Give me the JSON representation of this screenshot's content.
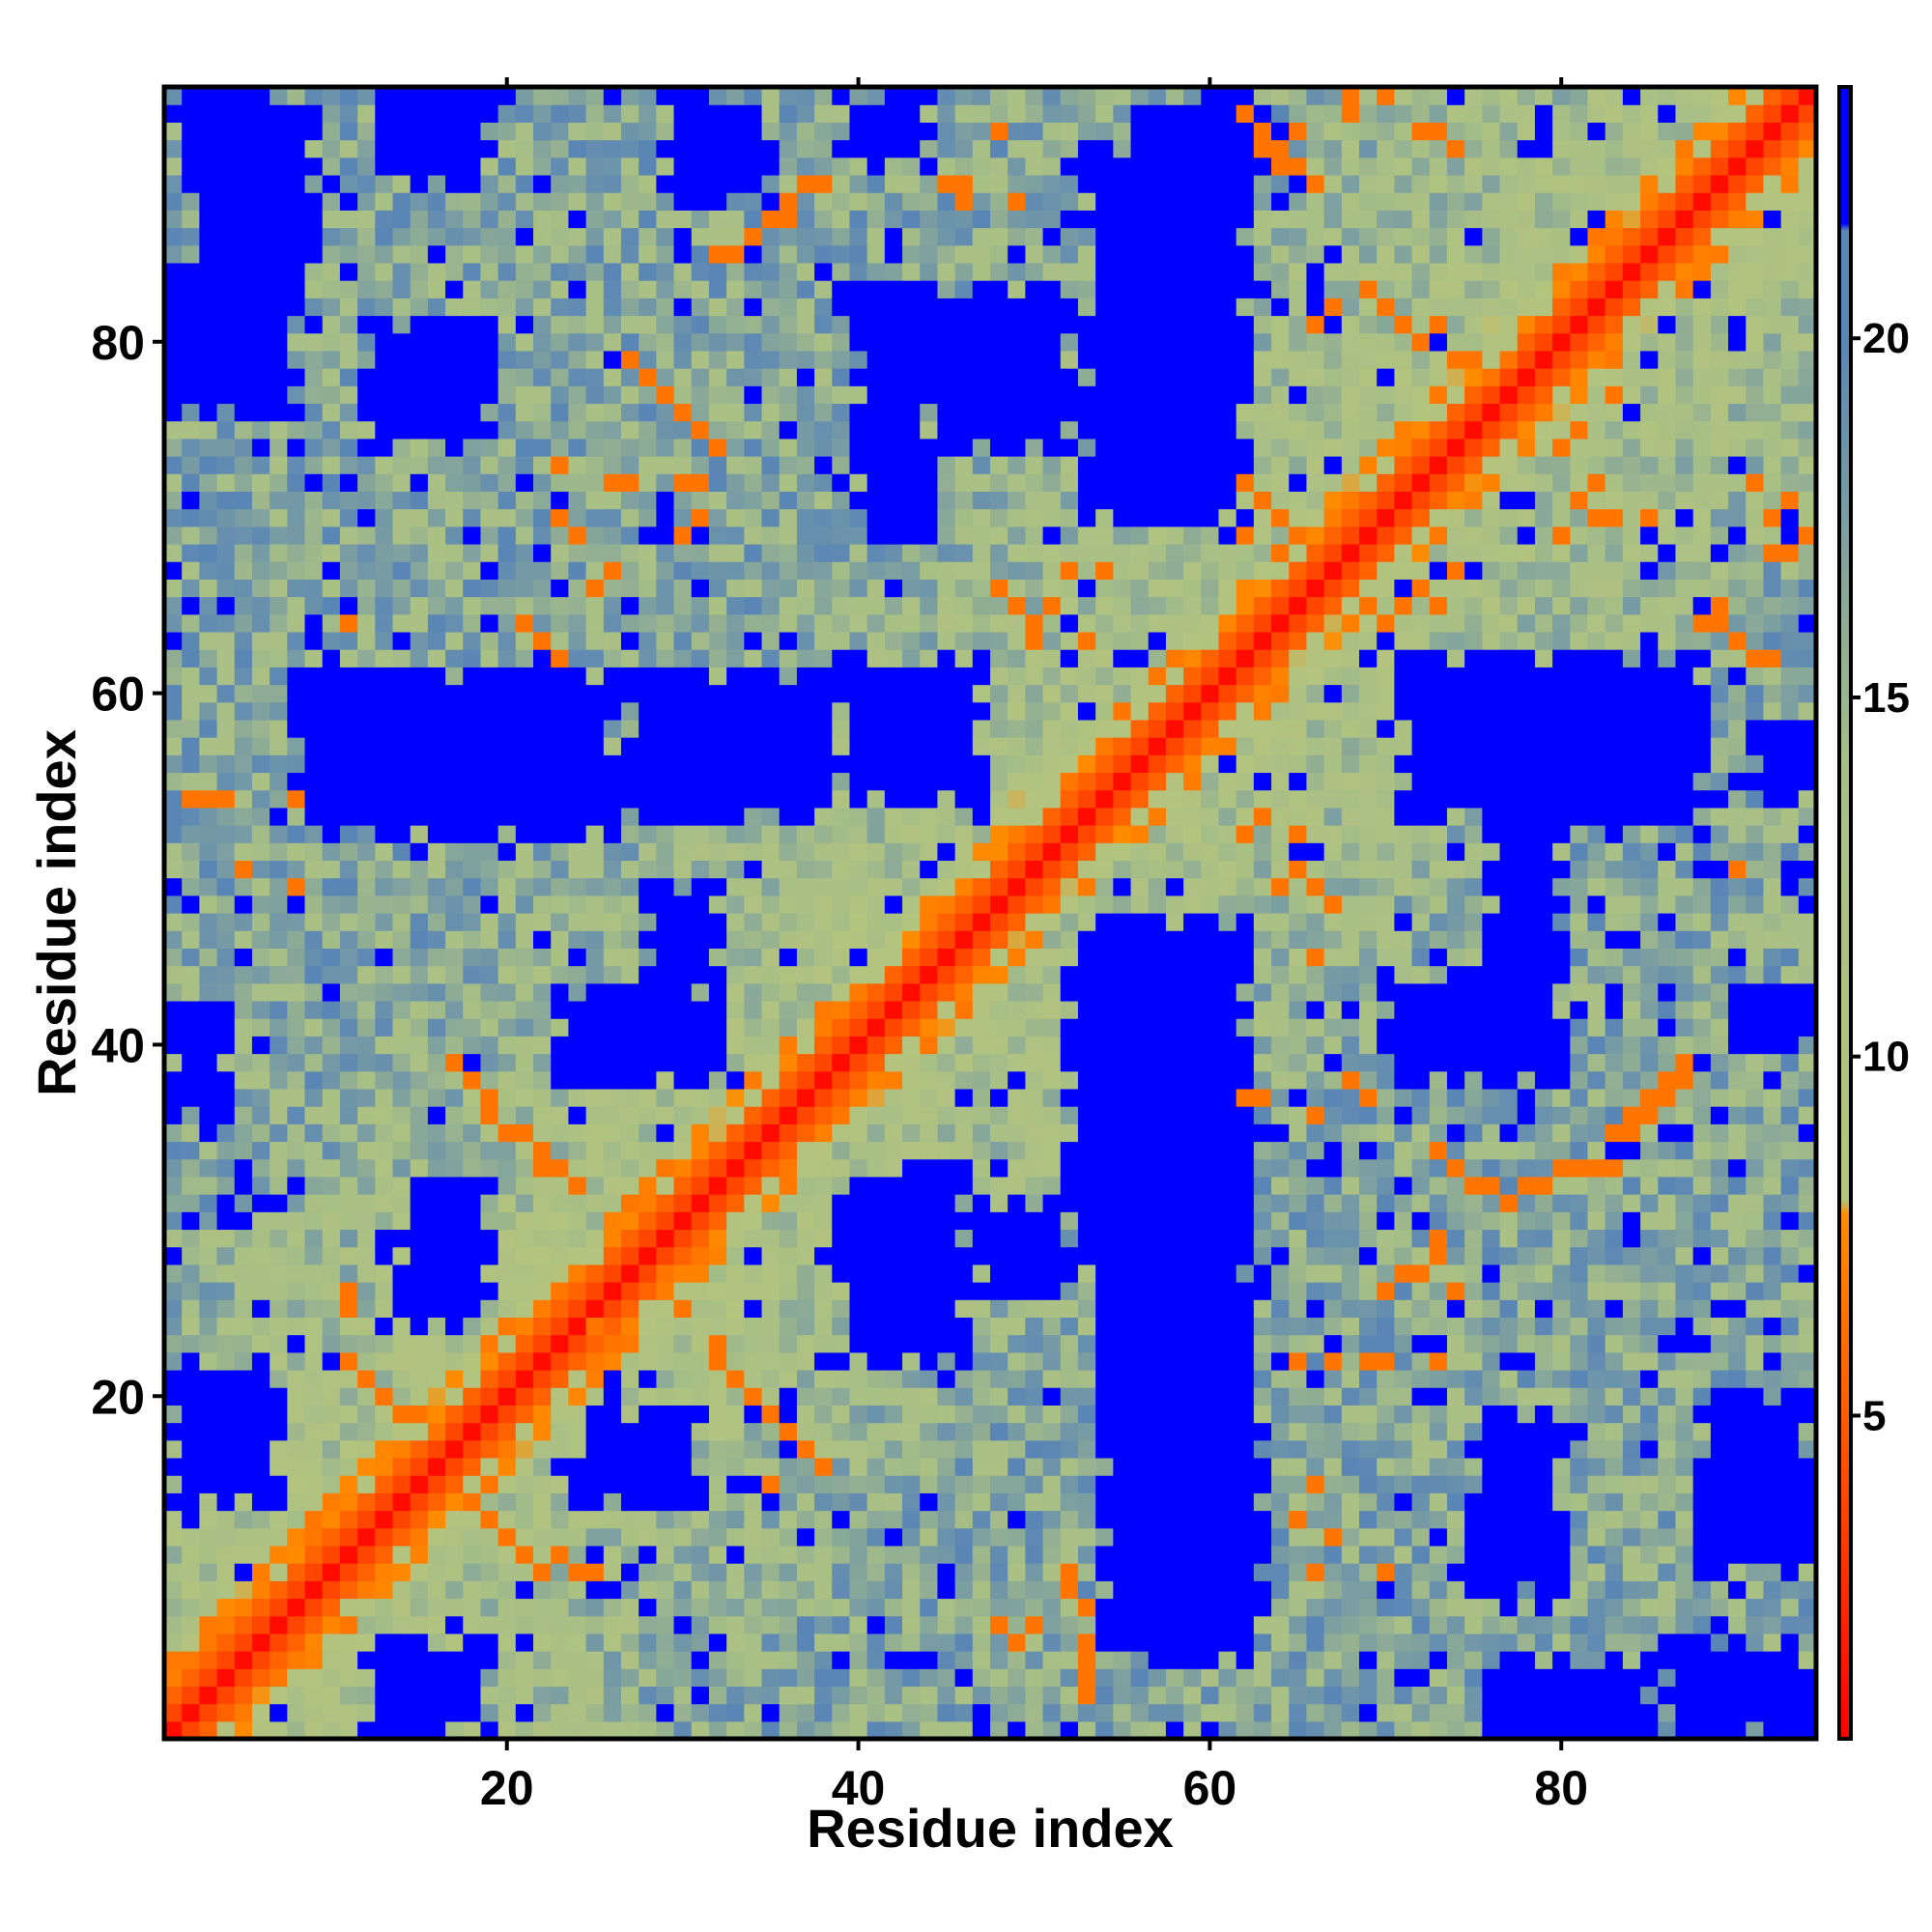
{
  "chart_data": {
    "type": "heatmap",
    "title": "",
    "xlabel": "Residue index",
    "ylabel": "Residue index",
    "n_residues": 94,
    "xlim": [
      0.5,
      94.5
    ],
    "ylim": [
      0.5,
      94.5
    ],
    "x_ticks": [
      20,
      40,
      60,
      80
    ],
    "y_ticks": [
      20,
      40,
      60,
      80
    ],
    "colorbar": {
      "range": [
        0.5,
        23.5
      ],
      "ticks": [
        5,
        10,
        15,
        20
      ],
      "placement": "right",
      "stops": [
        {
          "value": 0.5,
          "color": "#ff0000"
        },
        {
          "value": 4.0,
          "color": "#ff4a00"
        },
        {
          "value": 7.8,
          "color": "#ff8c00"
        },
        {
          "value": 8.0,
          "color": "#b4c47e"
        },
        {
          "value": 14.0,
          "color": "#a8bf85"
        },
        {
          "value": 20.0,
          "color": "#5a86b6"
        },
        {
          "value": 21.5,
          "color": "#5a86b6"
        },
        {
          "value": 21.6,
          "color": "#0000ff"
        },
        {
          "value": 23.5,
          "color": "#0000ff"
        }
      ]
    },
    "diagonal": {
      "contact_threshold": 8,
      "saturated_value": 21.6
    },
    "blue_regions": [
      {
        "x": [
          2,
          9
        ],
        "y": [
          84,
          94
        ]
      },
      {
        "x": [
          1,
          8
        ],
        "y": [
          76,
          84
        ]
      },
      {
        "x": [
          13,
          19
        ],
        "y": [
          89,
          94
        ]
      },
      {
        "x": [
          12,
          19
        ],
        "y": [
          74,
          81
        ]
      },
      {
        "x": [
          8,
          26
        ],
        "y": [
          52,
          61
        ]
      },
      {
        "x": [
          27,
          39
        ],
        "y": [
          53,
          61
        ]
      },
      {
        "x": [
          39,
          47
        ],
        "y": [
          54,
          62
        ]
      },
      {
        "x": [
          40,
          44
        ],
        "y": [
          69,
          83
        ]
      },
      {
        "x": [
          45,
          52
        ],
        "y": [
          74,
          83
        ]
      },
      {
        "x": [
          53,
          62
        ],
        "y": [
          70,
          90
        ]
      },
      {
        "x": [
          56,
          60
        ],
        "y": [
          88,
          93
        ]
      },
      {
        "x": [
          23,
          32
        ],
        "y": [
          38,
          43
        ]
      },
      {
        "x": [
          28,
          32
        ],
        "y": [
          43,
          49
        ]
      },
      {
        "x": [
          39,
          46
        ],
        "y": [
          22,
          33
        ]
      },
      {
        "x": [
          47,
          52
        ],
        "y": [
          26,
          31
        ]
      },
      {
        "x": [
          54,
          63
        ],
        "y": [
          5,
          27
        ]
      },
      {
        "x": [
          52,
          62
        ],
        "y": [
          27,
          47
        ]
      },
      {
        "x": [
          70,
          80
        ],
        "y": [
          38,
          44
        ]
      },
      {
        "x": [
          76,
          80
        ],
        "y": [
          44,
          54
        ]
      },
      {
        "x": [
          71,
          88
        ],
        "y": [
          53,
          62
        ]
      },
      {
        "x": [
          75,
          80
        ],
        "y": [
          9,
          19
        ]
      },
      {
        "x": [
          88,
          94
        ],
        "y": [
          10,
          20
        ]
      },
      {
        "x": [
          86,
          94
        ],
        "y": [
          1,
          6
        ]
      },
      {
        "x": [
          76,
          85
        ],
        "y": [
          1,
          5
        ]
      },
      {
        "x": [
          1,
          7
        ],
        "y": [
          14,
          21
        ]
      },
      {
        "x": [
          1,
          4
        ],
        "y": [
          36,
          42
        ]
      },
      {
        "x": [
          14,
          19
        ],
        "y": [
          24,
          32
        ]
      },
      {
        "x": [
          24,
          31
        ],
        "y": [
          14,
          19
        ]
      },
      {
        "x": [
          13,
          19
        ],
        "y": [
          1,
          6
        ]
      },
      {
        "x": [
          29,
          35
        ],
        "y": [
          88,
          94
        ]
      },
      {
        "x": [
          39,
          44
        ],
        "y": [
          90,
          94
        ]
      },
      {
        "x": [
          59,
          63
        ],
        "y": [
          89,
          94
        ]
      },
      {
        "x": [
          90,
          94
        ],
        "y": [
          40,
          43
        ]
      },
      {
        "x": [
          91,
          94
        ],
        "y": [
          54,
          58
        ]
      }
    ],
    "contact_points": [
      [
        2,
        54
      ],
      [
        3,
        54
      ],
      [
        4,
        54
      ],
      [
        8,
        54
      ],
      [
        5,
        50
      ],
      [
        8,
        49
      ],
      [
        17,
        39
      ],
      [
        18,
        38
      ],
      [
        19,
        37
      ],
      [
        19,
        36
      ],
      [
        20,
        35
      ],
      [
        21,
        35
      ],
      [
        22,
        34
      ],
      [
        22,
        33
      ],
      [
        23,
        33
      ],
      [
        24,
        32
      ],
      [
        11,
        26
      ],
      [
        11,
        25
      ],
      [
        11,
        22
      ],
      [
        12,
        21
      ],
      [
        13,
        20
      ],
      [
        14,
        19
      ],
      [
        15,
        19
      ],
      [
        16,
        18
      ],
      [
        18,
        14
      ],
      [
        19,
        13
      ],
      [
        20,
        12
      ],
      [
        21,
        11
      ],
      [
        22,
        10
      ],
      [
        23,
        11
      ],
      [
        24,
        10
      ],
      [
        25,
        10
      ],
      [
        32,
        23
      ],
      [
        32,
        22
      ],
      [
        33,
        21
      ],
      [
        34,
        20
      ],
      [
        35,
        19
      ],
      [
        36,
        18
      ],
      [
        37,
        17
      ],
      [
        38,
        16
      ],
      [
        35,
        15
      ],
      [
        29,
        27
      ],
      [
        30,
        25
      ],
      [
        25,
        24
      ],
      [
        26,
        23
      ],
      [
        32,
        74
      ],
      [
        31,
        75
      ],
      [
        30,
        76
      ],
      [
        29,
        77
      ],
      [
        28,
        78
      ],
      [
        27,
        79
      ],
      [
        31,
        72
      ],
      [
        30,
        72
      ],
      [
        26,
        72
      ],
      [
        27,
        72
      ],
      [
        32,
        85
      ],
      [
        33,
        85
      ],
      [
        34,
        86
      ],
      [
        35,
        87
      ],
      [
        36,
        88
      ],
      [
        37,
        89
      ],
      [
        38,
        89
      ],
      [
        36,
        87
      ],
      [
        25,
        66
      ],
      [
        26,
        67
      ],
      [
        24,
        69
      ],
      [
        23,
        70
      ],
      [
        30,
        69
      ],
      [
        31,
        70
      ],
      [
        23,
        73
      ],
      [
        21,
        64
      ],
      [
        22,
        63
      ],
      [
        23,
        62
      ],
      [
        11,
        64
      ],
      [
        48,
        66
      ],
      [
        49,
        65
      ],
      [
        50,
        64
      ],
      [
        51,
        65
      ],
      [
        50,
        63
      ],
      [
        53,
        63
      ],
      [
        52,
        67
      ],
      [
        54,
        67
      ],
      [
        48,
        92
      ],
      [
        49,
        88
      ],
      [
        46,
        89
      ],
      [
        46,
        88
      ],
      [
        45,
        89
      ],
      [
        62,
        93
      ],
      [
        63,
        92
      ],
      [
        63,
        91
      ],
      [
        64,
        91
      ],
      [
        65,
        92
      ],
      [
        65,
        90
      ],
      [
        66,
        89
      ],
      [
        64,
        90
      ],
      [
        66,
        81
      ],
      [
        67,
        82
      ],
      [
        68,
        93
      ],
      [
        68,
        94
      ],
      [
        70,
        94
      ],
      [
        72,
        92
      ],
      [
        73,
        92
      ],
      [
        74,
        91
      ],
      [
        69,
        83
      ],
      [
        70,
        82
      ],
      [
        71,
        81
      ],
      [
        72,
        80
      ],
      [
        73,
        81
      ],
      [
        74,
        79
      ],
      [
        75,
        79
      ],
      [
        76,
        78
      ],
      [
        77,
        79
      ],
      [
        62,
        72
      ],
      [
        63,
        71
      ],
      [
        64,
        70
      ],
      [
        65,
        69
      ],
      [
        62,
        69
      ],
      [
        64,
        68
      ],
      [
        69,
        65
      ],
      [
        70,
        64
      ],
      [
        71,
        65
      ],
      [
        72,
        66
      ],
      [
        73,
        65
      ],
      [
        74,
        67
      ],
      [
        62,
        52
      ],
      [
        63,
        53
      ],
      [
        65,
        52
      ],
      [
        64,
        49
      ],
      [
        65,
        50
      ],
      [
        66,
        49
      ],
      [
        67,
        48
      ],
      [
        66,
        45
      ],
      [
        62,
        37
      ],
      [
        63,
        37
      ],
      [
        66,
        36
      ],
      [
        68,
        38
      ],
      [
        69,
        37
      ],
      [
        73,
        34
      ],
      [
        74,
        33
      ],
      [
        75,
        32
      ],
      [
        76,
        32
      ],
      [
        77,
        31
      ],
      [
        78,
        32
      ],
      [
        79,
        32
      ],
      [
        80,
        33
      ],
      [
        81,
        33
      ],
      [
        82,
        33
      ],
      [
        83,
        33
      ],
      [
        84,
        35
      ],
      [
        85,
        36
      ],
      [
        86,
        37
      ],
      [
        87,
        39
      ],
      [
        86,
        38
      ],
      [
        70,
        26
      ],
      [
        71,
        27
      ],
      [
        72,
        27
      ],
      [
        73,
        28
      ],
      [
        73,
        29
      ],
      [
        74,
        26
      ],
      [
        67,
        22
      ],
      [
        69,
        22
      ],
      [
        70,
        22
      ],
      [
        73,
        22
      ],
      [
        65,
        22
      ],
      [
        86,
        38
      ],
      [
        87,
        38
      ],
      [
        84,
        36
      ],
      [
        85,
        37
      ],
      [
        83,
        35
      ],
      [
        88,
        64
      ],
      [
        89,
        64
      ],
      [
        90,
        63
      ],
      [
        91,
        62
      ],
      [
        92,
        62
      ],
      [
        89,
        65
      ],
      [
        93,
        68
      ],
      [
        94,
        69
      ],
      [
        92,
        68
      ],
      [
        80,
        69
      ],
      [
        82,
        70
      ],
      [
        83,
        70
      ],
      [
        85,
        70
      ],
      [
        81,
        71
      ],
      [
        82,
        72
      ],
      [
        80,
        74
      ],
      [
        81,
        75
      ],
      [
        83,
        77
      ],
      [
        90,
        50
      ],
      [
        92,
        70
      ],
      [
        93,
        71
      ],
      [
        91,
        72
      ],
      [
        52,
        10
      ],
      [
        52,
        9
      ],
      [
        53,
        8
      ],
      [
        53,
        6
      ],
      [
        53,
        5
      ],
      [
        53,
        4
      ],
      [
        53,
        3
      ],
      [
        50,
        7
      ],
      [
        49,
        6
      ],
      [
        48,
        7
      ],
      [
        70,
        10
      ],
      [
        66,
        10
      ],
      [
        67,
        12
      ],
      [
        65,
        13
      ],
      [
        66,
        15
      ]
    ]
  }
}
